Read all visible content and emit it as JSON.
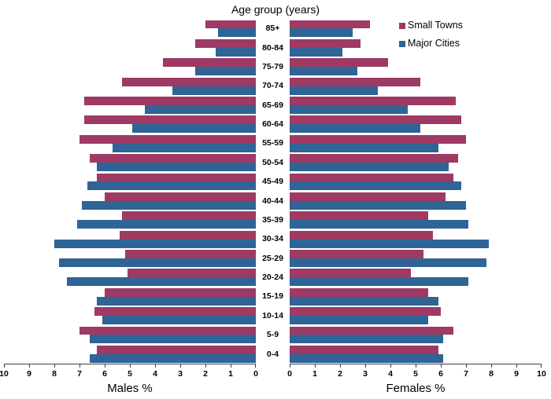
{
  "title": "Age group (years)",
  "axes": {
    "males_label": "Males %",
    "females_label": "Females %",
    "ticks_males": [
      "10",
      "9",
      "8",
      "7",
      "6",
      "5",
      "4",
      "3",
      "2",
      "1",
      "0"
    ],
    "ticks_females": [
      "0",
      "1",
      "2",
      "3",
      "4",
      "5",
      "6",
      "7",
      "8",
      "9",
      "10"
    ]
  },
  "legend": {
    "items": [
      {
        "label": "Small Towns",
        "color": "#9E3A64"
      },
      {
        "label": "Major Cities",
        "color": "#2F6496"
      }
    ]
  },
  "colors": {
    "small_towns": "#9E3A64",
    "major_cities": "#2F6496",
    "axis_line": "#404040"
  },
  "chart_data": {
    "type": "bar",
    "subtype": "population-pyramid",
    "orientation": "horizontal",
    "title": "Age group (years)",
    "categories": [
      "85+",
      "80-84",
      "75-79",
      "70-74",
      "65-69",
      "60-64",
      "55-59",
      "50-54",
      "45-49",
      "40-44",
      "35-39",
      "30-34",
      "25-29",
      "20-24",
      "15-19",
      "10-14",
      "5-9",
      "0-4"
    ],
    "categories_order": "top-to-bottom",
    "xlim": [
      0,
      10
    ],
    "x_tick_step": 1,
    "xlabel_males": "Males %",
    "xlabel_females": "Females %",
    "legend_position": "top-right",
    "grid": false,
    "series": [
      {
        "name": "Small Towns",
        "color": "#9E3A64",
        "males": [
          2.0,
          2.4,
          3.7,
          5.3,
          6.8,
          6.8,
          7.0,
          6.6,
          6.3,
          6.0,
          5.3,
          5.4,
          5.2,
          5.1,
          6.0,
          6.4,
          7.0,
          6.3
        ],
        "females": [
          3.2,
          2.8,
          3.9,
          5.2,
          6.6,
          6.8,
          7.0,
          6.7,
          6.5,
          6.2,
          5.5,
          5.7,
          5.3,
          4.8,
          5.5,
          6.0,
          6.5,
          5.9
        ]
      },
      {
        "name": "Major Cities",
        "color": "#2F6496",
        "males": [
          1.5,
          1.6,
          2.4,
          3.3,
          4.4,
          4.9,
          5.7,
          6.3,
          6.7,
          6.9,
          7.1,
          8.0,
          7.8,
          7.5,
          6.3,
          6.1,
          6.6,
          6.6
        ],
        "females": [
          2.5,
          2.1,
          2.7,
          3.5,
          4.7,
          5.2,
          5.9,
          6.3,
          6.8,
          7.0,
          7.1,
          7.9,
          7.8,
          7.1,
          5.9,
          5.5,
          6.1,
          6.1
        ]
      }
    ]
  }
}
